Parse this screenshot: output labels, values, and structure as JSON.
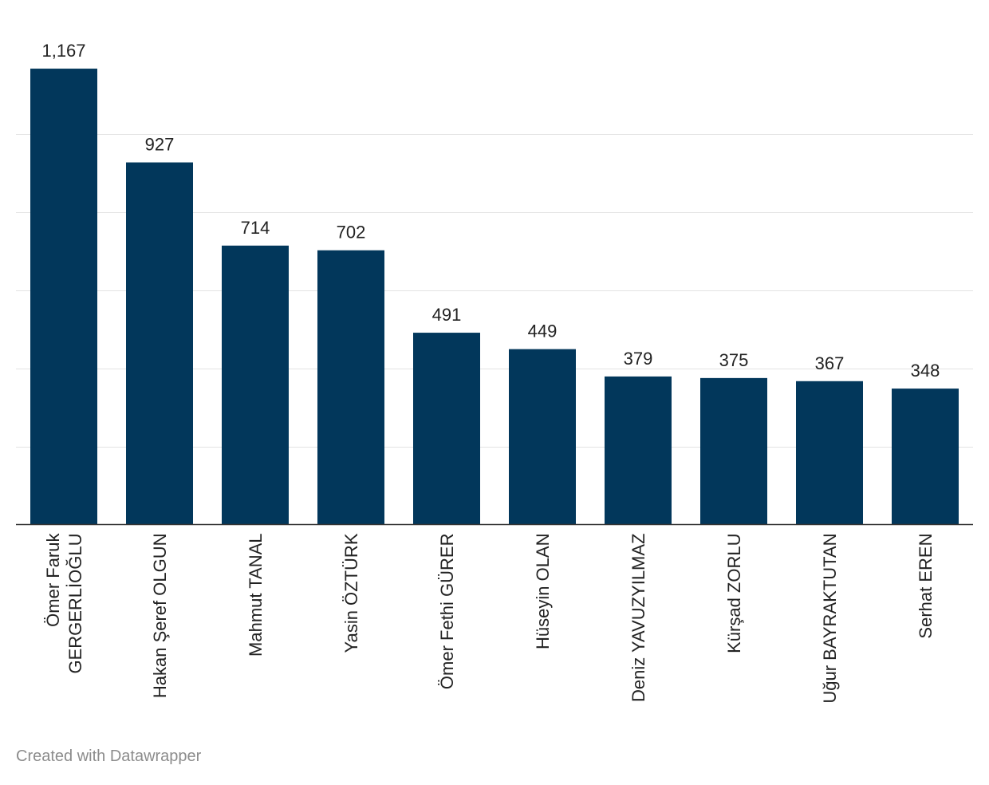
{
  "chart_data": {
    "type": "bar",
    "categories": [
      "Ömer Faruk GERGERLİOĞLU",
      "Hakan Şeref OLGUN",
      "Mahmut TANAL",
      "Yasin ÖZTÜRK",
      "Ömer Fethi GÜRER",
      "Hüseyin OLAN",
      "Deniz YAVUZYILMAZ",
      "Kürşad ZORLU",
      "Uğur BAYRAKTUTAN",
      "Serhat EREN"
    ],
    "category_lines": [
      [
        "Ömer Faruk",
        "GERGERLİOĞLU"
      ],
      [
        "Hakan Şeref OLGUN"
      ],
      [
        "Mahmut TANAL"
      ],
      [
        "Yasin ÖZTÜRK"
      ],
      [
        "Ömer Fethi GÜRER"
      ],
      [
        "Hüseyin OLAN"
      ],
      [
        "Deniz YAVUZYILMAZ"
      ],
      [
        "Kürşad ZORLU"
      ],
      [
        "Uğur BAYRAKTUTAN"
      ],
      [
        "Serhat EREN"
      ]
    ],
    "values": [
      1167,
      927,
      714,
      702,
      491,
      449,
      379,
      375,
      367,
      348
    ],
    "value_labels": [
      "1,167",
      "927",
      "714",
      "702",
      "491",
      "449",
      "379",
      "375",
      "367",
      "348"
    ],
    "ylim": [
      0,
      1260
    ],
    "gridlines": [
      200,
      400,
      600,
      800,
      1000
    ],
    "y_tick_labels_shown": false,
    "grid": true,
    "bar_color": "#02375b",
    "grid_color": "#e3e3e3",
    "baseline_color": "#333333",
    "label_color": "#222222",
    "title": "",
    "xlabel": "",
    "ylabel": ""
  },
  "footer": {
    "credit": "Created with Datawrapper",
    "color": "#8c8c8c"
  }
}
